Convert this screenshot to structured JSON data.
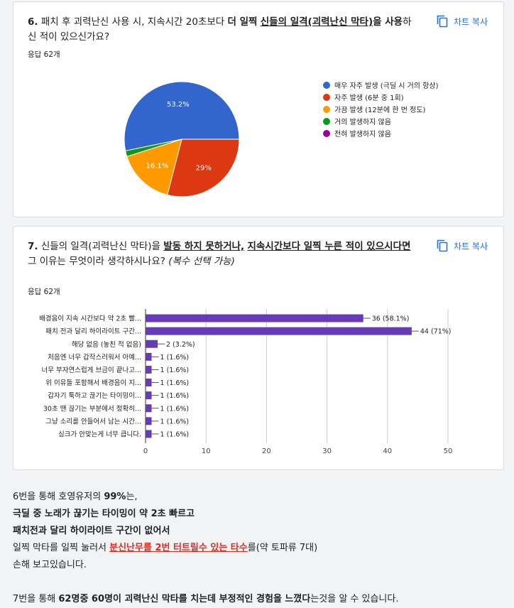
{
  "q6": {
    "title_num": "6.",
    "title_a": "패치 후 괴력난신 사용 시, 지속시간 20초보다",
    "title_b": "더 일찍",
    "title_c": "신들의 일격(괴력난신 막타)",
    "title_d": "을 사용",
    "title_e": "하신 적이 있으신가요?",
    "copy_label": "차트 복사",
    "responses": "응답 62개"
  },
  "q7": {
    "title_num": "7.",
    "title_a": "신들의 일격(괴력난신 막타)을",
    "title_b": "발동 하지 못하거나,",
    "title_c": "지속시간보다 일찍 누른 적이 있으시다면",
    "title_d": "그 이유는 무엇이라 생각하시나요?",
    "title_e": "(복수 선택 가능)",
    "copy_label": "차트 복사",
    "responses": "응답 62개"
  },
  "colors": {
    "blue": "#3366cc",
    "red": "#dc3912",
    "orange": "#ff9900",
    "green": "#109618",
    "purple": "#990099",
    "bar": "#673ab7",
    "link": "#1a73e8"
  },
  "chart_data": [
    {
      "type": "pie",
      "labels": [
        "매우 자주 발생 (극딜 시 거의 항상)",
        "자주 발생 (6분 중 1회)",
        "가끔 발생 (12분에 한 번 정도)",
        "거의 발생하지 않음",
        "전혀 발생하지 않음"
      ],
      "values": [
        53.2,
        29,
        16.1,
        1.6,
        0
      ],
      "data_labels": [
        "53.2%",
        "29%",
        "16.1%",
        "",
        ""
      ],
      "colors": [
        "#3366cc",
        "#dc3912",
        "#ff9900",
        "#109618",
        "#990099"
      ],
      "legend": "right"
    },
    {
      "type": "bar",
      "orientation": "horizontal",
      "categories": [
        "배경음이 지속 시간보다 약 2초 빨...",
        "패치 전과 달리 하이라이트 구간...",
        "해당 없음 (놓친 적 없음)",
        "처음엔 너무 갑작스러워서 아예...",
        "너무 부자연스럽게 브금이 끝나고...",
        "위 이유들 포함해서 배경음이 지...",
        "갑자기 툭하고 끊기는 타이밍이...",
        "30초 땐 끊기는 부분에서 정확히...",
        "그냥 소리를 안들어서 남는 시간...",
        "싱크가 안맞는게 너무 큽니다."
      ],
      "values": [
        36,
        44,
        2,
        1,
        1,
        1,
        1,
        1,
        1,
        1
      ],
      "data_labels": [
        "36 (58.1%)",
        "44 (71%)",
        "2 (3.2%)",
        "1 (1.6%)",
        "1 (1.6%)",
        "1 (1.6%)",
        "1 (1.6%)",
        "1 (1.6%)",
        "1 (1.6%)",
        "1 (1.6%)"
      ],
      "xlim": [
        0,
        50
      ],
      "xticks": [
        "0",
        "10",
        "20",
        "30",
        "40",
        "50"
      ],
      "grid": true
    }
  ],
  "bottom": {
    "l1a": "6번을 통해 호영유저의 ",
    "l1b": "99%",
    "l1c": "는,",
    "l2": "극딜 중 노래가 끊기는 타이밍이 약 2초 빠르고",
    "l3": "패치전과 달리 하이라이트 구간이 없어서",
    "l4a": "일찍 막타를 일찍 눌러서 ",
    "l4b": "분신난무를 2번 터트릴수 있는 타수",
    "l4c": "를(약 토파류 7대)",
    "l5": "손해 보고있습니다.",
    "l6a": "7번을 통해 ",
    "l6b": "62명중 60명이",
    "l6c": " 괴력난신 막타를 치는데 부정적인 경험을 느꼈다",
    "l6d": "는것을 알 수 있습니다."
  }
}
